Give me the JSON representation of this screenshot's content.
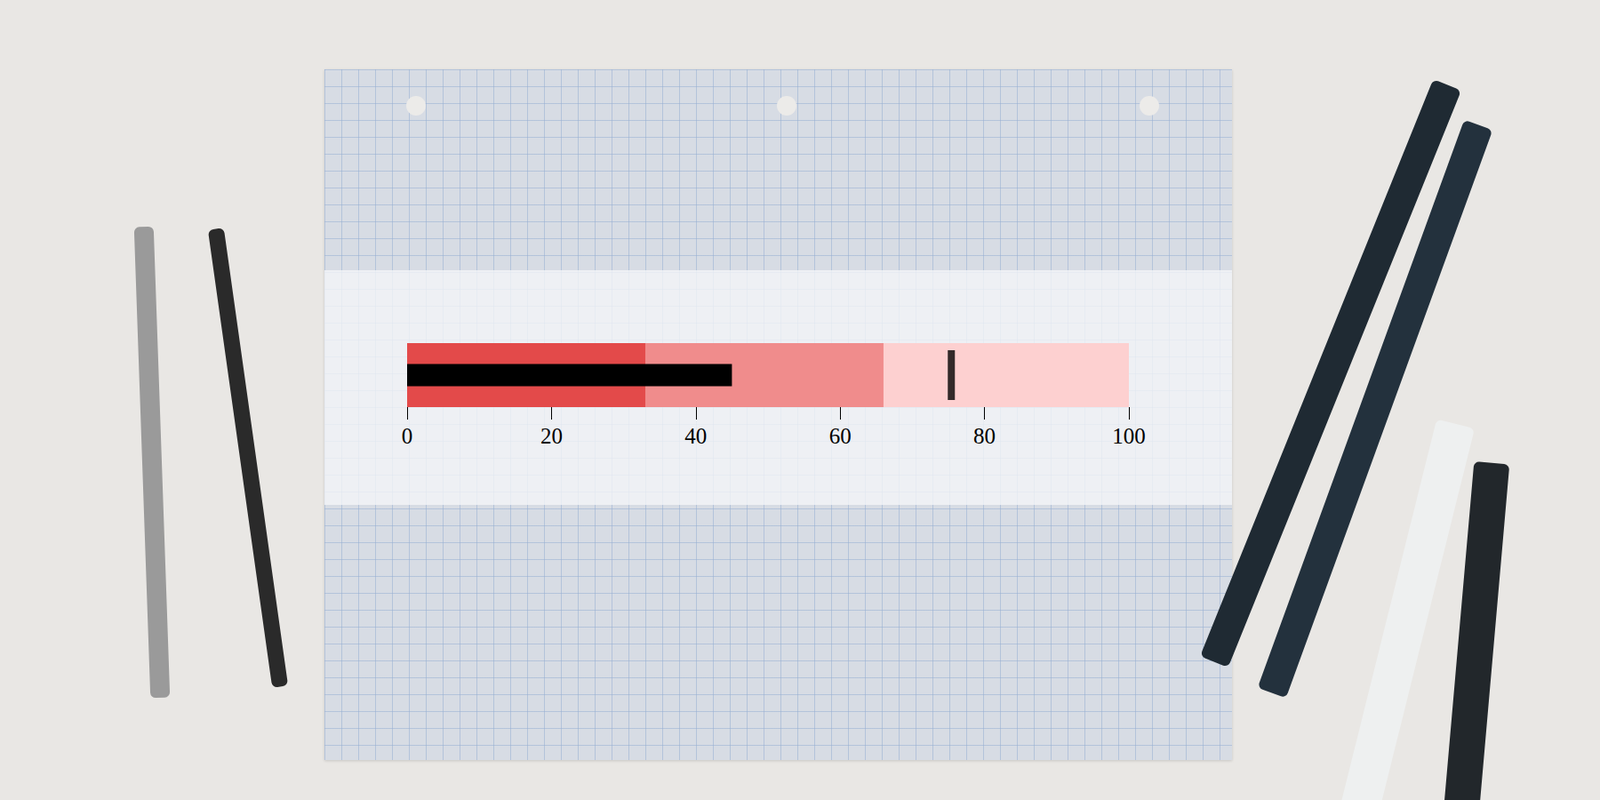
{
  "chart_data": {
    "type": "bullet",
    "orientation": "horizontal",
    "values": [
      45
    ],
    "target": 75.4,
    "ranges": [
      33,
      66,
      100
    ],
    "colors": [
      "#e34a4a",
      "#f08c8c",
      "#fdd0d0"
    ],
    "color": "#000000",
    "xlim": [
      0,
      100
    ],
    "xticks": [
      0,
      20,
      40,
      60,
      80,
      100
    ],
    "grid": false
  }
}
